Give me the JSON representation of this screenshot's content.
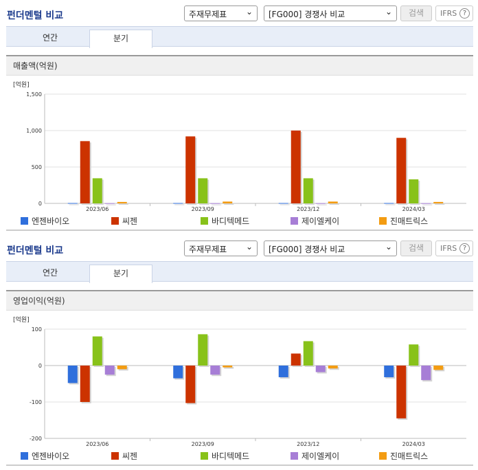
{
  "panels": [
    {
      "title": "펀더멘털 비교",
      "select1": "주재무제표",
      "select2": "[FG000] 경쟁사 비교",
      "search_label": "검색",
      "ifrs_label": "IFRS",
      "help_glyph": "?",
      "tabs": [
        "연간",
        "분기"
      ],
      "active_tab": 1,
      "section_title": "매출액(억원)"
    },
    {
      "title": "펀더멘털 비교",
      "select1": "주재무제표",
      "select2": "[FG000] 경쟁사 비교",
      "search_label": "검색",
      "ifrs_label": "IFRS",
      "help_glyph": "?",
      "tabs": [
        "연간",
        "분기"
      ],
      "active_tab": 1,
      "section_title": "영업이익(억원)"
    }
  ],
  "colors": {
    "엔젠바이오": "#2f6fdc",
    "씨젠": "#cc3300",
    "바디텍메드": "#88c21a",
    "제이엘케이": "#a77ed6",
    "진매트릭스": "#f39c12"
  },
  "chart_data": [
    {
      "type": "bar",
      "unit_label": "[억원]",
      "categories": [
        "2023/06",
        "2023/09",
        "2023/12",
        "2024/03"
      ],
      "ylim": [
        0,
        1500
      ],
      "yticks": [
        0,
        500,
        1000,
        1500
      ],
      "ytick_labels": [
        "0",
        "500",
        "1,000",
        "1,500"
      ],
      "grid": true,
      "legend_position": "bottom",
      "series": [
        {
          "name": "엔젠바이오",
          "values": [
            5,
            5,
            5,
            5
          ]
        },
        {
          "name": "씨젠",
          "values": [
            855,
            920,
            1000,
            900
          ]
        },
        {
          "name": "바디텍메드",
          "values": [
            345,
            345,
            345,
            330
          ]
        },
        {
          "name": "제이엘케이",
          "values": [
            3,
            3,
            3,
            3
          ]
        },
        {
          "name": "진매트릭스",
          "values": [
            20,
            25,
            25,
            20
          ]
        }
      ]
    },
    {
      "type": "bar",
      "unit_label": "[억원]",
      "categories": [
        "2023/06",
        "2023/09",
        "2023/12",
        "2024/03"
      ],
      "ylim": [
        -200,
        100
      ],
      "yticks": [
        -200,
        -100,
        0,
        100
      ],
      "ytick_labels": [
        "-200",
        "-100",
        "0",
        "100"
      ],
      "grid": true,
      "legend_position": "bottom",
      "series": [
        {
          "name": "엔젠바이오",
          "values": [
            -48,
            -35,
            -32,
            -32
          ]
        },
        {
          "name": "씨젠",
          "values": [
            -100,
            -103,
            33,
            -145
          ]
        },
        {
          "name": "바디텍메드",
          "values": [
            80,
            86,
            67,
            58
          ]
        },
        {
          "name": "제이엘케이",
          "values": [
            -25,
            -25,
            -18,
            -40
          ]
        },
        {
          "name": "진매트릭스",
          "values": [
            -10,
            -5,
            -8,
            -12
          ]
        }
      ]
    }
  ]
}
